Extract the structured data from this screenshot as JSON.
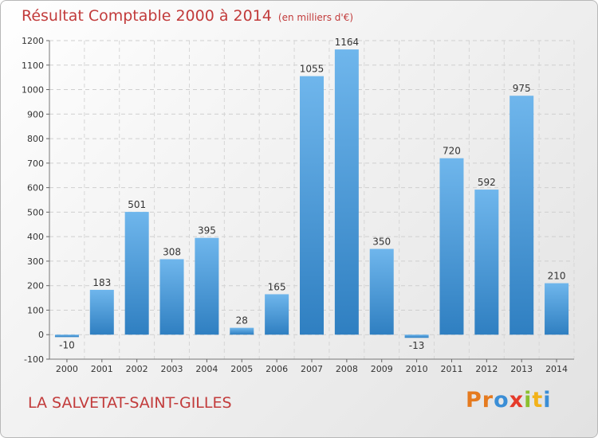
{
  "page": {
    "title": "Résultat Comptable 2000 à 2014",
    "subtitle": "(en milliers d'€)",
    "commune": "LA SALVETAT-SAINT-GILLES",
    "logo_letters": [
      "P",
      "r",
      "o",
      "x",
      "i",
      "t",
      "i"
    ]
  },
  "colors": {
    "accent_text": "#c23b3b",
    "bar_light": "#6fb6ec",
    "bar_dark": "#2f7fc1",
    "logo": [
      "#e57a1f",
      "#e57a1f",
      "#3b8ed6",
      "#e53a2a",
      "#8bbf2e",
      "#f2b21a",
      "#3b8ed6"
    ]
  },
  "chart_data": {
    "type": "bar",
    "title": "Résultat Comptable 2000 à 2014",
    "units": "(en milliers d'€)",
    "xlabel": "",
    "ylabel": "",
    "categories": [
      "2000",
      "2001",
      "2002",
      "2003",
      "2004",
      "2005",
      "2006",
      "2007",
      "2008",
      "2009",
      "2010",
      "2011",
      "2012",
      "2013",
      "2014"
    ],
    "values": [
      -10,
      183,
      501,
      308,
      395,
      28,
      165,
      1055,
      1164,
      350,
      -13,
      720,
      592,
      975,
      210
    ],
    "labels": [
      "-10",
      "183",
      "501",
      "308",
      "395",
      "28",
      "165",
      "1055",
      "1164",
      "350",
      "-13",
      "720",
      "592",
      "975",
      "210"
    ],
    "ylim": [
      -100,
      1200
    ],
    "yticks": [
      -100,
      0,
      100,
      200,
      300,
      400,
      500,
      600,
      700,
      800,
      900,
      1000,
      1100,
      1200
    ],
    "grid": true,
    "legend": "none"
  }
}
